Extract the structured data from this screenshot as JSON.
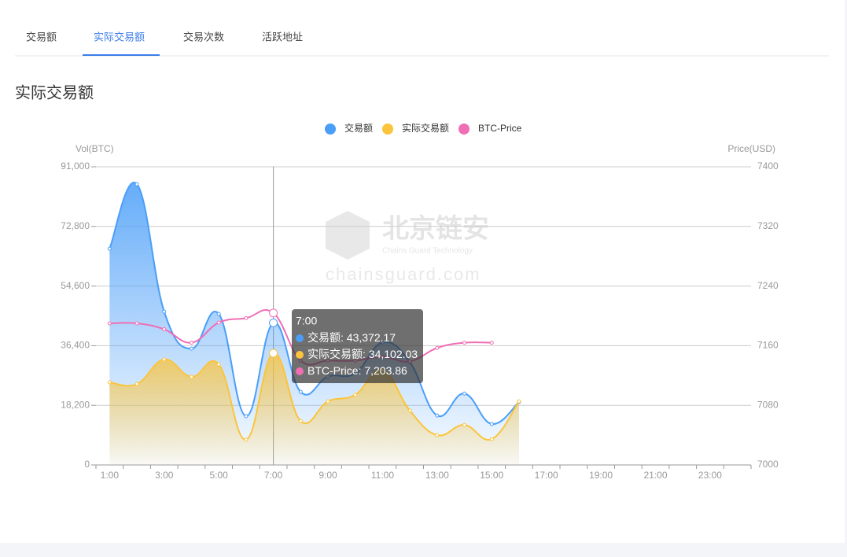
{
  "tabs": {
    "items": [
      "交易额",
      "实际交易额",
      "交易次数",
      "活跃地址"
    ],
    "active": 1
  },
  "heading": "实际交易额",
  "watermark": {
    "name": "北京链安",
    "subtitle": "Chains Guard Technology",
    "site": "chainsguard.com"
  },
  "tooltip": {
    "title": "7:00",
    "items": [
      {
        "name": "交易额",
        "value": "43,372.17"
      },
      {
        "name": "实际交易额",
        "value": "34,102.03"
      },
      {
        "name": "BTC-Price",
        "value": "7,203.86"
      }
    ]
  },
  "chart_data": {
    "type": "line",
    "smooth": true,
    "area": true,
    "ylabel": "Vol(BTC)",
    "y2label": "Price(USD)",
    "categories": [
      "1:00",
      null,
      "3:00",
      null,
      "5:00",
      null,
      "7:00",
      null,
      "9:00",
      null,
      "11:00",
      null,
      "13:00",
      null,
      "15:00",
      null,
      "17:00",
      null,
      "19:00",
      null,
      "21:00",
      null,
      "23:00",
      null
    ],
    "series": [
      {
        "name": "交易额",
        "color": "#4a9ef8",
        "values": [
          66000,
          85700,
          46800,
          35500,
          46100,
          14900,
          43372.17,
          22300,
          27000,
          28000,
          37400,
          31400,
          15100,
          21800,
          12500,
          19200,
          null,
          null,
          null,
          null,
          null,
          null,
          null,
          null
        ]
      },
      {
        "name": "实际交易额",
        "color": "#fbc43c",
        "values": [
          25200,
          24700,
          32200,
          26900,
          30700,
          7700,
          34102.03,
          13400,
          19400,
          21400,
          29000,
          16600,
          9100,
          12200,
          7900,
          19400,
          null,
          null,
          null,
          null,
          null,
          null,
          null,
          null
        ]
      },
      {
        "name": "BTC-Price",
        "color": "#f06eb4",
        "axis": "y2",
        "values": [
          7190,
          7190,
          7182,
          7164,
          7191,
          7197,
          7203.86,
          7140,
          7140,
          7140,
          7145,
          7139,
          7157,
          7164,
          7164,
          null,
          null,
          null,
          null,
          null,
          null,
          null,
          null,
          null
        ]
      }
    ],
    "ylim": [
      0,
      91000
    ],
    "yticks": [
      0,
      {
        "value": 18200,
        "label": "18,200"
      },
      {
        "value": 36400,
        "label": "36,400"
      },
      {
        "value": 54600,
        "label": "54,600"
      },
      {
        "value": 72800,
        "label": "72,800"
      },
      {
        "value": 91000,
        "label": "91,000"
      }
    ],
    "y2lim": [
      7000,
      7400
    ],
    "y2ticks": [
      7000,
      7080,
      7160,
      7240,
      7320,
      7400
    ],
    "grid": true
  }
}
